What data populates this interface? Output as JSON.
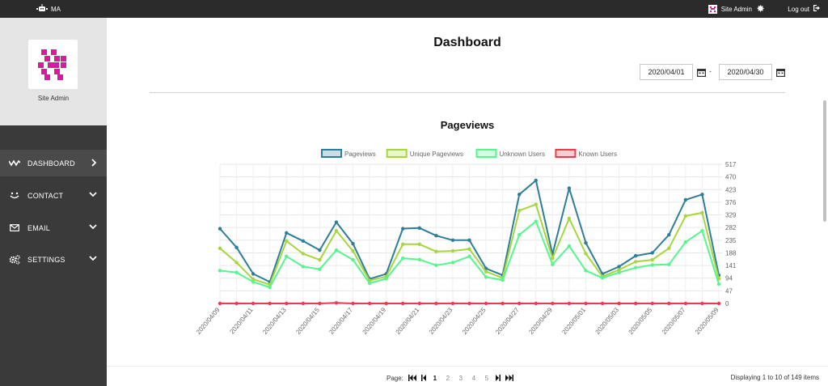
{
  "topbar": {
    "app_name": "MA",
    "logo_icon": "robot-icon",
    "user_label": "Site Admin",
    "settings_icon": "gear-icon",
    "logout_label": "Log out",
    "logout_icon": "sign-out-icon"
  },
  "sidebar": {
    "profile_name": "Site Admin",
    "items": [
      {
        "label": "DASHBOARD",
        "icon": "activity-icon",
        "active": true
      },
      {
        "label": "CONTACT",
        "icon": "smile-icon",
        "active": false
      },
      {
        "label": "EMAIL",
        "icon": "envelope-icon",
        "active": false
      },
      {
        "label": "SETTINGS",
        "icon": "cogs-icon",
        "active": false
      }
    ]
  },
  "main": {
    "title": "Dashboard",
    "date_from": "2020/04/01",
    "date_to": "2020/04/30",
    "date_separator": "-",
    "chart_title": "Pageviews"
  },
  "colors": {
    "pageviews": "#2e7d99",
    "unique_pageviews": "#a6d63c",
    "unknown_users": "#56f58d",
    "known_users": "#f0394a",
    "accent": "#d81b9e"
  },
  "chart_data": {
    "type": "line",
    "title": "Pageviews",
    "x": [
      "2020/04/09",
      "2020/04/10",
      "2020/04/11",
      "2020/04/12",
      "2020/04/13",
      "2020/04/14",
      "2020/04/15",
      "2020/04/16",
      "2020/04/17",
      "2020/04/18",
      "2020/04/19",
      "2020/04/20",
      "2020/04/21",
      "2020/04/22",
      "2020/04/23",
      "2020/04/24",
      "2020/04/25",
      "2020/04/26",
      "2020/04/27",
      "2020/04/28",
      "2020/04/29",
      "2020/04/30",
      "2020/05/01",
      "2020/05/02",
      "2020/05/03",
      "2020/05/04",
      "2020/05/05",
      "2020/05/06",
      "2020/05/07",
      "2020/05/08",
      "2020/05/09"
    ],
    "x_tick_labels": [
      "2020/04/09",
      "2020/04/11",
      "2020/04/13",
      "2020/04/15",
      "2020/04/17",
      "2020/04/19",
      "2020/04/21",
      "2020/04/23",
      "2020/04/25",
      "2020/04/27",
      "2020/04/29",
      "2020/05/01",
      "2020/05/03",
      "2020/05/05",
      "2020/05/07",
      "2020/05/09"
    ],
    "y_ticks": [
      0,
      47,
      94,
      141,
      188,
      235,
      282,
      329,
      376,
      423,
      470,
      517
    ],
    "ylim": [
      0,
      517
    ],
    "y_axis_side": "right",
    "grid": true,
    "legend_position": "top",
    "series": [
      {
        "name": "Pageviews",
        "values": [
          278,
          208,
          110,
          80,
          262,
          232,
          198,
          302,
          222,
          91,
          110,
          278,
          280,
          252,
          235,
          235,
          130,
          105,
          405,
          457,
          183,
          428,
          225,
          110,
          137,
          177,
          188,
          255,
          385,
          405,
          105
        ]
      },
      {
        "name": "Unique Pageviews",
        "values": [
          205,
          152,
          90,
          70,
          232,
          185,
          162,
          270,
          195,
          85,
          100,
          220,
          220,
          193,
          195,
          202,
          118,
          95,
          345,
          368,
          168,
          316,
          185,
          100,
          125,
          155,
          162,
          205,
          325,
          337,
          92
        ]
      },
      {
        "name": "Unknown Users",
        "values": [
          122,
          115,
          80,
          60,
          175,
          137,
          127,
          198,
          162,
          75,
          92,
          168,
          163,
          142,
          152,
          175,
          98,
          87,
          255,
          305,
          145,
          213,
          122,
          95,
          115,
          133,
          143,
          145,
          228,
          270,
          72
        ]
      },
      {
        "name": "Known Users",
        "values": [
          0,
          0,
          0,
          0,
          0,
          0,
          0,
          2,
          0,
          0,
          0,
          0,
          0,
          0,
          0,
          0,
          0,
          0,
          0,
          0,
          0,
          0,
          0,
          0,
          0,
          0,
          0,
          0,
          0,
          0,
          0
        ]
      }
    ]
  },
  "pager": {
    "label": "Page:",
    "pages": [
      "1",
      "2",
      "3",
      "4",
      "5"
    ],
    "current": "1",
    "info": "Displaying 1 to 10 of 149 items"
  }
}
